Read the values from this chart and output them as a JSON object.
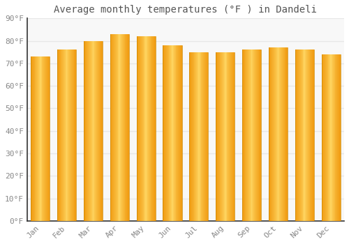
{
  "title": "Average monthly temperatures (°F ) in Dandeli",
  "months": [
    "Jan",
    "Feb",
    "Mar",
    "Apr",
    "May",
    "Jun",
    "Jul",
    "Aug",
    "Sep",
    "Oct",
    "Nov",
    "Dec"
  ],
  "values": [
    73,
    76,
    80,
    83,
    82,
    78,
    75,
    75,
    76,
    77,
    76,
    74
  ],
  "bar_color_left": "#F5A623",
  "bar_color_center": "#FFD966",
  "bar_color_right": "#F5A623",
  "background_color": "#FFFFFF",
  "plot_bg_color": "#F8F8F8",
  "grid_color": "#E8E8E8",
  "ylim": [
    0,
    90
  ],
  "yticks": [
    0,
    10,
    20,
    30,
    40,
    50,
    60,
    70,
    80,
    90
  ],
  "ytick_labels": [
    "0°F",
    "10°F",
    "20°F",
    "30°F",
    "40°F",
    "50°F",
    "60°F",
    "70°F",
    "80°F",
    "90°F"
  ],
  "title_fontsize": 10,
  "tick_fontsize": 8,
  "font_color": "#888888",
  "spine_color": "#333333"
}
